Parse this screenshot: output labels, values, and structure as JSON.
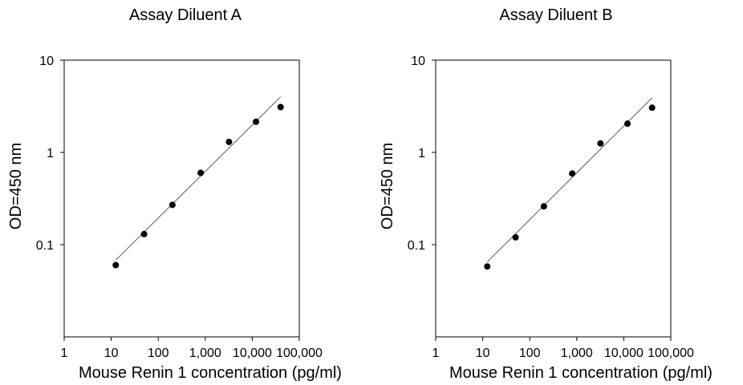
{
  "chart_data": [
    {
      "type": "scatter",
      "title": "Assay Diluent A",
      "xlabel": "Mouse Renin 1 concentration (pg/ml)",
      "ylabel": "OD=450 nm",
      "x_scale": "log",
      "y_scale": "log",
      "xlim": [
        1,
        100000
      ],
      "ylim": [
        0.01,
        10
      ],
      "x_ticks": [
        1,
        10,
        100,
        1000,
        10000,
        100000
      ],
      "x_tick_labels": [
        "1",
        "10",
        "100",
        "1,000",
        "10,000",
        "100,000"
      ],
      "y_ticks": [
        0.1,
        1,
        10
      ],
      "y_tick_labels": [
        "0.1",
        "1",
        "10"
      ],
      "grid": false,
      "series": [
        {
          "x": [
            12.5,
            50,
            200,
            800,
            3200,
            12000,
            40000
          ],
          "y": [
            0.06,
            0.13,
            0.27,
            0.6,
            1.3,
            2.15,
            3.1
          ]
        }
      ],
      "fit_line": {
        "x": [
          12.5,
          40000
        ],
        "y": [
          0.068,
          4.0
        ]
      }
    },
    {
      "type": "scatter",
      "title": "Assay Diluent B",
      "xlabel": "Mouse Renin 1 concentration (pg/ml)",
      "ylabel": "OD=450 nm",
      "x_scale": "log",
      "y_scale": "log",
      "xlim": [
        1,
        100000
      ],
      "ylim": [
        0.01,
        10
      ],
      "x_ticks": [
        1,
        10,
        100,
        1000,
        10000,
        100000
      ],
      "x_tick_labels": [
        "1",
        "10",
        "100",
        "1,000",
        "10,000",
        "100,000"
      ],
      "y_ticks": [
        0.1,
        1,
        10
      ],
      "y_tick_labels": [
        "0.1",
        "1",
        "10"
      ],
      "grid": false,
      "series": [
        {
          "x": [
            12.5,
            50,
            200,
            800,
            3200,
            12000,
            40000
          ],
          "y": [
            0.058,
            0.12,
            0.26,
            0.59,
            1.25,
            2.05,
            3.05
          ]
        }
      ],
      "fit_line": {
        "x": [
          12.5,
          40000
        ],
        "y": [
          0.065,
          3.9
        ]
      }
    }
  ]
}
